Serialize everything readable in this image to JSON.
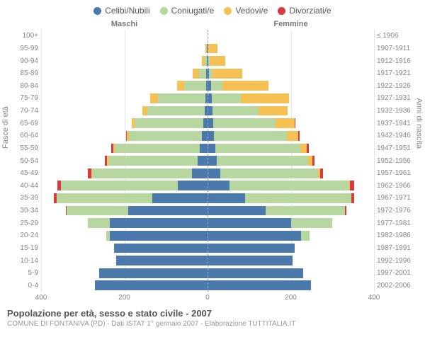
{
  "chart": {
    "type": "population-pyramid",
    "xmax": 400,
    "xticks": [
      400,
      200,
      0,
      200,
      400
    ],
    "series": [
      {
        "key": "celibi",
        "label": "Celibi/Nubili",
        "color": "#4b79ab"
      },
      {
        "key": "coniugati",
        "label": "Coniugati/e",
        "color": "#b7d6a0"
      },
      {
        "key": "vedovi",
        "label": "Vedovi/e",
        "color": "#f5c154"
      },
      {
        "key": "divorziati",
        "label": "Divorziati/e",
        "color": "#d73c3c"
      }
    ],
    "headers": {
      "left": "Maschi",
      "right": "Femmine",
      "age_axis": "Fasce di età",
      "birth_axis": "Anni di nascita"
    },
    "background": "#ffffff",
    "grid_color": "#e5e5e5",
    "centerline_color": "#9aa7d4",
    "font_color_labels": "#888888",
    "font_color_headers": "#777777",
    "label_fontsize": 10,
    "header_fontsize": 11,
    "legend_fontsize": 12,
    "bar_height_ratio": 0.78,
    "groups": [
      {
        "age": "100+",
        "birth": "≤ 1906",
        "m": [
          0,
          0,
          0,
          0
        ],
        "f": [
          0,
          0,
          0,
          0
        ]
      },
      {
        "age": "95-99",
        "birth": "1907-1911",
        "m": [
          1,
          0,
          4,
          0
        ],
        "f": [
          0,
          1,
          22,
          0
        ]
      },
      {
        "age": "90-94",
        "birth": "1912-1916",
        "m": [
          2,
          4,
          8,
          0
        ],
        "f": [
          2,
          3,
          38,
          0
        ]
      },
      {
        "age": "85-89",
        "birth": "1917-1921",
        "m": [
          3,
          18,
          15,
          0
        ],
        "f": [
          4,
          8,
          72,
          0
        ]
      },
      {
        "age": "80-84",
        "birth": "1922-1926",
        "m": [
          4,
          52,
          17,
          0
        ],
        "f": [
          8,
          28,
          110,
          0
        ]
      },
      {
        "age": "75-79",
        "birth": "1927-1931",
        "m": [
          5,
          115,
          18,
          0
        ],
        "f": [
          10,
          70,
          115,
          0
        ]
      },
      {
        "age": "70-74",
        "birth": "1932-1936",
        "m": [
          6,
          138,
          12,
          0
        ],
        "f": [
          12,
          110,
          70,
          0
        ]
      },
      {
        "age": "65-69",
        "birth": "1937-1941",
        "m": [
          10,
          165,
          7,
          0
        ],
        "f": [
          14,
          150,
          45,
          1
        ]
      },
      {
        "age": "60-64",
        "birth": "1942-1946",
        "m": [
          14,
          175,
          5,
          2
        ],
        "f": [
          15,
          175,
          28,
          3
        ]
      },
      {
        "age": "55-59",
        "birth": "1947-1951",
        "m": [
          18,
          205,
          4,
          4
        ],
        "f": [
          18,
          205,
          16,
          4
        ]
      },
      {
        "age": "50-54",
        "birth": "1952-1956",
        "m": [
          24,
          215,
          3,
          5
        ],
        "f": [
          22,
          220,
          10,
          5
        ]
      },
      {
        "age": "45-49",
        "birth": "1957-1961",
        "m": [
          38,
          240,
          2,
          7
        ],
        "f": [
          30,
          235,
          6,
          7
        ]
      },
      {
        "age": "40-44",
        "birth": "1962-1966",
        "m": [
          72,
          280,
          0,
          9
        ],
        "f": [
          52,
          288,
          3,
          9
        ]
      },
      {
        "age": "35-39",
        "birth": "1967-1971",
        "m": [
          132,
          230,
          0,
          8
        ],
        "f": [
          90,
          255,
          0,
          8
        ]
      },
      {
        "age": "30-34",
        "birth": "1972-1976",
        "m": [
          190,
          148,
          0,
          2
        ],
        "f": [
          140,
          190,
          0,
          3
        ]
      },
      {
        "age": "25-29",
        "birth": "1977-1981",
        "m": [
          235,
          52,
          0,
          0
        ],
        "f": [
          200,
          100,
          0,
          0
        ]
      },
      {
        "age": "20-24",
        "birth": "1982-1986",
        "m": [
          235,
          8,
          0,
          0
        ],
        "f": [
          225,
          20,
          0,
          0
        ]
      },
      {
        "age": "15-19",
        "birth": "1987-1991",
        "m": [
          225,
          0,
          0,
          0
        ],
        "f": [
          210,
          0,
          0,
          0
        ]
      },
      {
        "age": "10-14",
        "birth": "1992-1996",
        "m": [
          220,
          0,
          0,
          0
        ],
        "f": [
          205,
          0,
          0,
          0
        ]
      },
      {
        "age": "5-9",
        "birth": "1997-2001",
        "m": [
          260,
          0,
          0,
          0
        ],
        "f": [
          230,
          0,
          0,
          0
        ]
      },
      {
        "age": "0-4",
        "birth": "2002-2006",
        "m": [
          270,
          0,
          0,
          0
        ],
        "f": [
          248,
          0,
          0,
          0
        ]
      }
    ]
  },
  "footer": {
    "title": "Popolazione per età, sesso e stato civile - 2007",
    "subtitle": "COMUNE DI FONTANIVA (PD) - Dati ISTAT 1° gennaio 2007 - Elaborazione TUTTITALIA.IT"
  }
}
